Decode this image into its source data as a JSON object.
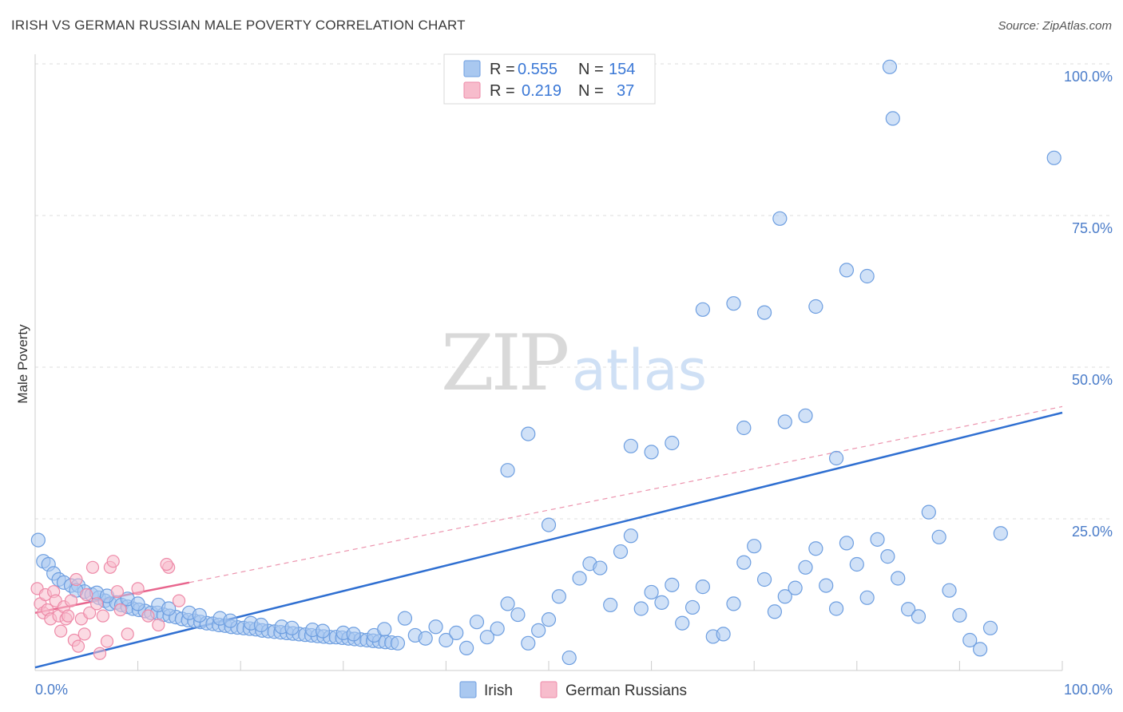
{
  "title": "IRISH VS GERMAN RUSSIAN MALE POVERTY CORRELATION CHART",
  "source": "Source: ZipAtlas.com",
  "watermark": {
    "part1": "ZIP",
    "part2": "atlas"
  },
  "legend": {
    "rows": [
      {
        "r_label": "R =",
        "r_value": "0.555",
        "n_label": "N =",
        "n_value": "154",
        "color": "#a9c8f0",
        "stroke": "#6d9ee0"
      },
      {
        "r_label": "R =",
        "r_value": "0.219",
        "n_label": "N =",
        "n_value": "37",
        "color": "#f7bccc",
        "stroke": "#ee8aa8"
      }
    ]
  },
  "bottom_legend": [
    {
      "label": "Irish",
      "color": "#a9c8f0",
      "stroke": "#6d9ee0"
    },
    {
      "label": "German Russians",
      "color": "#f7bccc",
      "stroke": "#ee8aa8"
    }
  ],
  "chart_data": {
    "type": "scatter",
    "ylabel": "Male Poverty",
    "xlim": [
      0,
      100
    ],
    "ylim": [
      0,
      100
    ],
    "x_tick_labels": [
      "0.0%",
      "100.0%"
    ],
    "y_tick_labels": [
      "25.0%",
      "50.0%",
      "75.0%",
      "100.0%"
    ],
    "y_ticks": [
      25,
      50,
      75,
      100
    ],
    "grid": "horizontal dashed",
    "series": [
      {
        "name": "Irish",
        "color": "#a9c8f0",
        "stroke": "#6d9ee0",
        "trend": {
          "x": [
            0,
            100
          ],
          "y": [
            0.5,
            42.5
          ],
          "color": "#2f6fd1"
        },
        "points": [
          [
            0.3,
            21.5
          ],
          [
            0.8,
            18
          ],
          [
            1.3,
            17.5
          ],
          [
            1.8,
            16
          ],
          [
            2.3,
            15
          ],
          [
            2.8,
            14.5
          ],
          [
            3.5,
            14
          ],
          [
            4.2,
            14
          ],
          [
            4.8,
            13
          ],
          [
            5.5,
            12.5
          ],
          [
            6.2,
            12
          ],
          [
            6.8,
            11.5
          ],
          [
            7.3,
            11
          ],
          [
            7.9,
            11.2
          ],
          [
            8.4,
            10.8
          ],
          [
            9.0,
            10.5
          ],
          [
            9.5,
            10.2
          ],
          [
            10.1,
            10
          ],
          [
            10.7,
            9.8
          ],
          [
            11.3,
            9.5
          ],
          [
            11.9,
            9.5
          ],
          [
            12.5,
            9.2
          ],
          [
            13.1,
            9.0
          ],
          [
            13.7,
            8.8
          ],
          [
            14.3,
            8.5
          ],
          [
            14.9,
            8.3
          ],
          [
            15.5,
            8.2
          ],
          [
            16.1,
            8.0
          ],
          [
            16.7,
            7.8
          ],
          [
            17.3,
            7.7
          ],
          [
            17.9,
            7.5
          ],
          [
            18.5,
            7.4
          ],
          [
            19.1,
            7.2
          ],
          [
            19.7,
            7.1
          ],
          [
            20.3,
            7.0
          ],
          [
            20.9,
            6.9
          ],
          [
            21.5,
            6.8
          ],
          [
            22.1,
            6.6
          ],
          [
            22.7,
            6.5
          ],
          [
            23.3,
            6.4
          ],
          [
            23.9,
            6.3
          ],
          [
            24.5,
            6.2
          ],
          [
            25.1,
            6.1
          ],
          [
            25.7,
            6.0
          ],
          [
            26.3,
            5.9
          ],
          [
            26.9,
            5.8
          ],
          [
            27.5,
            5.7
          ],
          [
            28.1,
            5.6
          ],
          [
            28.7,
            5.5
          ],
          [
            29.3,
            5.5
          ],
          [
            29.9,
            5.4
          ],
          [
            30.5,
            5.3
          ],
          [
            31.1,
            5.2
          ],
          [
            31.7,
            5.1
          ],
          [
            32.3,
            5.0
          ],
          [
            32.9,
            4.9
          ],
          [
            33.5,
            4.8
          ],
          [
            34.1,
            4.7
          ],
          [
            34.7,
            4.6
          ],
          [
            35.3,
            4.5
          ],
          [
            6,
            12.8
          ],
          [
            9,
            11.8
          ],
          [
            12,
            10.8
          ],
          [
            15,
            9.5
          ],
          [
            18,
            8.6
          ],
          [
            21,
            7.8
          ],
          [
            24,
            7.2
          ],
          [
            27,
            6.7
          ],
          [
            30,
            6.2
          ],
          [
            33,
            5.8
          ],
          [
            4,
            13.2
          ],
          [
            7,
            12.3
          ],
          [
            10,
            11.0
          ],
          [
            13,
            10.2
          ],
          [
            16,
            9.1
          ],
          [
            19,
            8.2
          ],
          [
            22,
            7.5
          ],
          [
            25,
            7.0
          ],
          [
            28,
            6.5
          ],
          [
            31,
            6.0
          ],
          [
            34,
            6.8
          ],
          [
            36,
            8.6
          ],
          [
            37,
            5.8
          ],
          [
            38,
            5.3
          ],
          [
            39,
            7.2
          ],
          [
            40,
            5.0
          ],
          [
            41,
            6.2
          ],
          [
            42,
            3.7
          ],
          [
            43,
            8.0
          ],
          [
            44,
            5.5
          ],
          [
            45,
            6.9
          ],
          [
            46,
            11.0
          ],
          [
            47,
            9.2
          ],
          [
            48,
            4.5
          ],
          [
            49,
            6.6
          ],
          [
            50,
            8.4
          ],
          [
            51,
            12.2
          ],
          [
            52,
            2.1
          ],
          [
            53,
            15.2
          ],
          [
            54,
            17.6
          ],
          [
            55,
            16.9
          ],
          [
            56,
            10.8
          ],
          [
            57,
            19.6
          ],
          [
            58,
            22.2
          ],
          [
            59,
            10.2
          ],
          [
            60,
            12.9
          ],
          [
            61,
            11.2
          ],
          [
            62,
            14.1
          ],
          [
            63,
            7.8
          ],
          [
            64,
            10.4
          ],
          [
            65,
            13.8
          ],
          [
            66,
            5.6
          ],
          [
            67,
            6.0
          ],
          [
            68,
            11.0
          ],
          [
            69,
            17.8
          ],
          [
            70,
            20.5
          ],
          [
            71,
            15.0
          ],
          [
            72,
            9.7
          ],
          [
            73,
            12.2
          ],
          [
            74,
            13.6
          ],
          [
            75,
            17.0
          ],
          [
            76,
            20.1
          ],
          [
            77,
            14.0
          ],
          [
            78,
            10.2
          ],
          [
            79,
            21.0
          ],
          [
            80,
            17.5
          ],
          [
            81,
            12.0
          ],
          [
            82,
            21.6
          ],
          [
            83,
            18.8
          ],
          [
            84,
            15.2
          ],
          [
            85,
            10.1
          ],
          [
            86,
            8.9
          ],
          [
            87,
            26.1
          ],
          [
            88,
            22.0
          ],
          [
            89,
            13.2
          ],
          [
            90,
            9.1
          ],
          [
            91,
            5.0
          ],
          [
            92,
            3.5
          ],
          [
            93,
            7.0
          ],
          [
            94,
            22.6
          ],
          [
            83.5,
            91.0
          ],
          [
            83.2,
            99.5
          ],
          [
            99.2,
            84.5
          ],
          [
            72.5,
            74.5
          ],
          [
            79,
            66.0
          ],
          [
            81,
            65.0
          ],
          [
            68,
            60.5
          ],
          [
            76,
            60.0
          ],
          [
            71,
            59.0
          ],
          [
            65,
            59.5
          ],
          [
            58,
            37.0
          ],
          [
            48,
            39.0
          ],
          [
            46,
            33.0
          ],
          [
            50,
            24.0
          ],
          [
            60,
            36.0
          ],
          [
            62,
            37.5
          ],
          [
            69,
            40.0
          ],
          [
            73,
            41.0
          ],
          [
            75,
            42.0
          ],
          [
            78,
            35.0
          ]
        ]
      },
      {
        "name": "German Russians",
        "color": "#f7bccc",
        "stroke": "#ee8aa8",
        "trend_solid": {
          "x": [
            0,
            15
          ],
          "y": [
            9.5,
            14.5
          ],
          "color": "#e8668e"
        },
        "trend_dashed": {
          "x": [
            15,
            100
          ],
          "y": [
            14.5,
            43.5
          ],
          "color": "#ec94ae"
        },
        "points": [
          [
            0.2,
            13.5
          ],
          [
            0.5,
            11.0
          ],
          [
            0.8,
            9.5
          ],
          [
            1.0,
            12.5
          ],
          [
            1.2,
            10.0
          ],
          [
            1.5,
            8.5
          ],
          [
            1.8,
            13.0
          ],
          [
            2.0,
            11.5
          ],
          [
            2.3,
            9.0
          ],
          [
            2.5,
            6.5
          ],
          [
            2.8,
            10.5
          ],
          [
            3.0,
            8.5
          ],
          [
            3.2,
            9.0
          ],
          [
            3.5,
            11.5
          ],
          [
            3.8,
            5.0
          ],
          [
            4.0,
            15.0
          ],
          [
            4.2,
            4.0
          ],
          [
            4.5,
            8.5
          ],
          [
            4.8,
            6.0
          ],
          [
            5.0,
            12.5
          ],
          [
            5.3,
            9.5
          ],
          [
            5.6,
            17.0
          ],
          [
            6.0,
            11.0
          ],
          [
            6.3,
            2.8
          ],
          [
            6.6,
            9.0
          ],
          [
            7.0,
            4.8
          ],
          [
            7.3,
            17.0
          ],
          [
            7.6,
            18.0
          ],
          [
            8.0,
            13.0
          ],
          [
            8.3,
            10.0
          ],
          [
            9.0,
            6.0
          ],
          [
            10.0,
            13.5
          ],
          [
            11.0,
            9.0
          ],
          [
            12.0,
            7.5
          ],
          [
            13.0,
            17.0
          ],
          [
            14.0,
            11.5
          ],
          [
            12.8,
            17.5
          ]
        ]
      }
    ]
  }
}
